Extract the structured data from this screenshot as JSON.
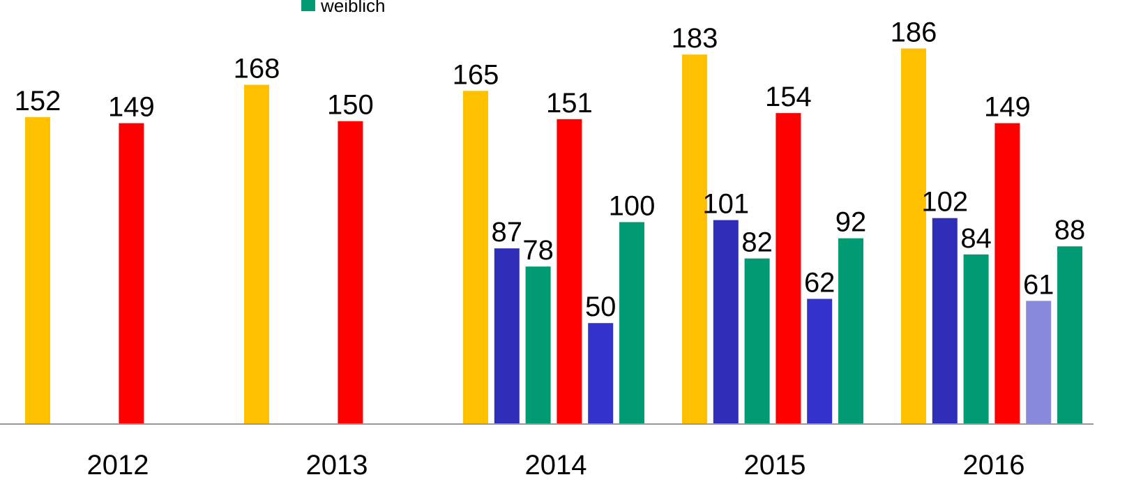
{
  "chart_data": {
    "type": "bar",
    "categories": [
      "2012",
      "2013",
      "2014",
      "2015",
      "2016"
    ],
    "series": [
      {
        "color": "#ffc000",
        "values": [
          152,
          168,
          165,
          183,
          186
        ]
      },
      {
        "color": "#2e2eb8",
        "values": [
          null,
          null,
          87,
          101,
          102
        ]
      },
      {
        "color": "#009a73",
        "values": [
          null,
          null,
          78,
          82,
          84
        ]
      },
      {
        "color": "#ff0000",
        "values": [
          149,
          150,
          151,
          154,
          149
        ]
      },
      {
        "color": "#3333cc",
        "colors": [
          "#3333cc",
          "#3333cc",
          "#3333cc",
          "#3333cc",
          "#8888dd"
        ],
        "values": [
          null,
          null,
          50,
          62,
          61
        ]
      },
      {
        "name": "weiblich",
        "color": "#009a73",
        "values": [
          null,
          null,
          100,
          92,
          88
        ]
      }
    ],
    "ylim": [
      0,
      210
    ]
  }
}
